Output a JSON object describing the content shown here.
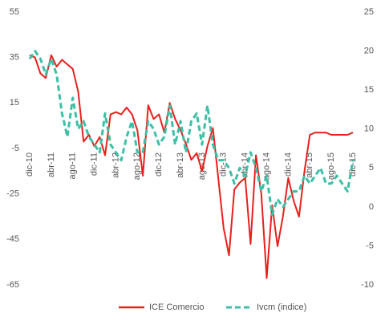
{
  "chart_data": {
    "type": "line",
    "categories": [
      "dic-10",
      null,
      null,
      null,
      "abr-11",
      null,
      null,
      null,
      "ago-11",
      null,
      null,
      null,
      "dic-11",
      null,
      null,
      null,
      "abr-12",
      null,
      null,
      null,
      "ago-12",
      null,
      null,
      null,
      "dic-12",
      null,
      null,
      null,
      "abr-13",
      null,
      null,
      null,
      "ago-13",
      null,
      null,
      null,
      "dic-13",
      null,
      null,
      null,
      "abr-14",
      null,
      null,
      null,
      "ago-14",
      null,
      null,
      null,
      "dic-14",
      null,
      null,
      null,
      "abr-15",
      null,
      null,
      null,
      "ago-15",
      null,
      null,
      null,
      "dic-15"
    ],
    "series": [
      {
        "name": "ICE Comercio",
        "color": "#e8201c",
        "dashed": false,
        "values": [
          36,
          35,
          28,
          26,
          36,
          31,
          34,
          32,
          30,
          20,
          -2,
          1,
          -4,
          0,
          -8,
          10,
          11,
          10,
          13,
          10,
          3,
          -17,
          14,
          8,
          10,
          2,
          15,
          8,
          3,
          -3,
          -10,
          -7,
          -15,
          -4,
          4,
          -18,
          -40,
          -52,
          -23,
          -20,
          -18,
          -47,
          -8,
          -25,
          -62,
          -30,
          -48,
          -35,
          -18,
          -28,
          -35,
          -15,
          1,
          2,
          2,
          2,
          1,
          1,
          1,
          1,
          2
        ]
      },
      {
        "name": "Ivcm (indice)",
        "color": "#3dbfa6",
        "dashed": true,
        "axis": "y2",
        "values": [
          19,
          20,
          19,
          17,
          19,
          17,
          12,
          9,
          14,
          10,
          11,
          9,
          8,
          7,
          12,
          8,
          7,
          6,
          9,
          11,
          7,
          7,
          11,
          10,
          8,
          9,
          13,
          8,
          11,
          7,
          11,
          12,
          8,
          13,
          8,
          6,
          6,
          5,
          3,
          5,
          4,
          7,
          5,
          2,
          4,
          -1,
          1,
          0,
          1,
          2,
          2,
          4,
          3,
          4,
          5,
          3,
          3,
          4,
          3,
          2,
          6
        ]
      }
    ],
    "ylim": [
      -65,
      55
    ],
    "yticks": [
      55,
      35,
      15,
      -5,
      -25,
      -45,
      -65
    ],
    "y2lim": [
      -10,
      25
    ],
    "y2ticks": [
      25,
      20,
      15,
      10,
      5,
      0,
      -5,
      -10
    ],
    "grid": false
  }
}
